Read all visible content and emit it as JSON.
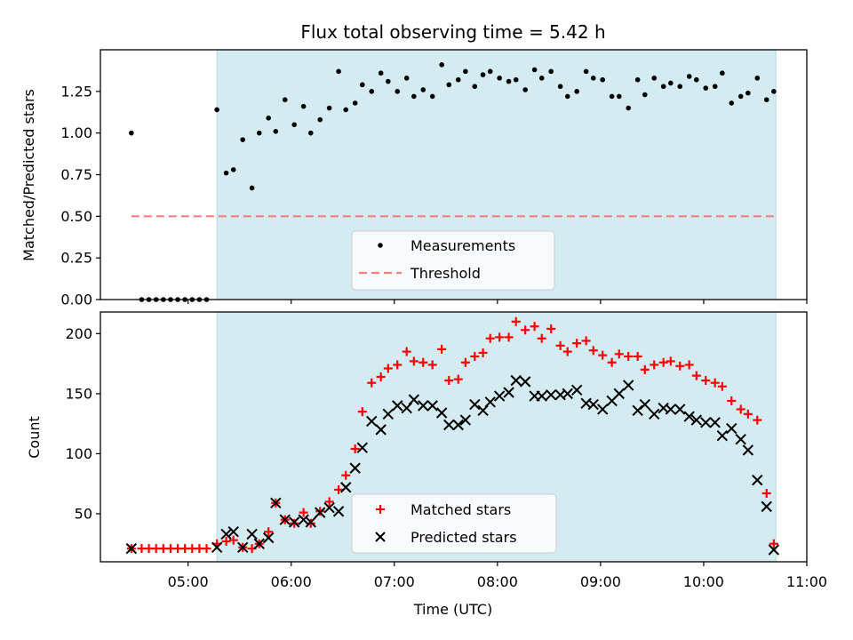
{
  "chart_data": [
    {
      "type": "scatter",
      "title": "Flux total observing time = 5.42 h",
      "xlabel": "",
      "ylabel": "Matched/Predicted stars",
      "xlim": [
        4.15,
        11.0
      ],
      "ylim": [
        0.0,
        1.5
      ],
      "yticks": [
        0.0,
        0.25,
        0.5,
        0.75,
        1.0,
        1.25
      ],
      "ytick_labels": [
        "0.00",
        "0.25",
        "0.50",
        "0.75",
        "1.00",
        "1.25"
      ],
      "shaded_span": [
        5.28,
        10.7
      ],
      "shaded_color": "#d4ebf1",
      "legend": {
        "placement": "lower-center",
        "entries": [
          "Measurements",
          "Threshold"
        ]
      },
      "series": [
        {
          "name": "Measurements",
          "color": "#000000",
          "marker": "dot",
          "x": [
            4.45,
            4.55,
            4.62,
            4.69,
            4.76,
            4.83,
            4.9,
            4.97,
            5.04,
            5.11,
            5.18,
            5.28,
            5.37,
            5.44,
            5.53,
            5.62,
            5.69,
            5.78,
            5.85,
            5.94,
            6.03,
            6.12,
            6.19,
            6.28,
            6.37,
            6.46,
            6.53,
            6.62,
            6.69,
            6.78,
            6.87,
            6.94,
            7.03,
            7.12,
            7.19,
            7.28,
            7.37,
            7.46,
            7.53,
            7.62,
            7.69,
            7.78,
            7.86,
            7.93,
            8.02,
            8.11,
            8.18,
            8.27,
            8.36,
            8.43,
            8.52,
            8.61,
            8.68,
            8.77,
            8.86,
            8.93,
            9.02,
            9.11,
            9.18,
            9.27,
            9.36,
            9.43,
            9.52,
            9.61,
            9.68,
            9.77,
            9.86,
            9.93,
            10.02,
            10.11,
            10.18,
            10.27,
            10.36,
            10.43,
            10.52,
            10.61,
            10.68
          ],
          "y": [
            1.0,
            0.0,
            0.0,
            0.0,
            0.0,
            0.0,
            0.0,
            0.0,
            0.0,
            0.0,
            0.0,
            1.14,
            0.76,
            0.78,
            0.96,
            0.67,
            1.0,
            1.09,
            1.01,
            1.2,
            1.05,
            1.16,
            1.0,
            1.08,
            1.15,
            1.37,
            1.14,
            1.18,
            1.29,
            1.25,
            1.36,
            1.31,
            1.25,
            1.33,
            1.22,
            1.26,
            1.22,
            1.41,
            1.29,
            1.32,
            1.37,
            1.28,
            1.35,
            1.37,
            1.33,
            1.31,
            1.32,
            1.26,
            1.38,
            1.33,
            1.37,
            1.28,
            1.22,
            1.25,
            1.37,
            1.33,
            1.32,
            1.22,
            1.22,
            1.15,
            1.32,
            1.23,
            1.33,
            1.28,
            1.3,
            1.28,
            1.34,
            1.32,
            1.27,
            1.28,
            1.36,
            1.18,
            1.22,
            1.24,
            1.33,
            1.2,
            1.25
          ]
        },
        {
          "name": "Threshold",
          "color": "#f08080",
          "style": "dashed",
          "x": [
            4.45,
            10.7
          ],
          "y": [
            0.5,
            0.5
          ]
        }
      ]
    },
    {
      "type": "scatter",
      "title": "",
      "xlabel": "Time (UTC)",
      "ylabel": "Count",
      "xlim": [
        4.15,
        11.0
      ],
      "ylim": [
        10,
        218
      ],
      "yticks": [
        50,
        100,
        150,
        200
      ],
      "ytick_labels": [
        "50",
        "100",
        "150",
        "200"
      ],
      "xticks": [
        5,
        6,
        7,
        8,
        9,
        10,
        11
      ],
      "xtick_labels": [
        "05:00",
        "06:00",
        "07:00",
        "08:00",
        "09:00",
        "10:00",
        "11:00"
      ],
      "shaded_span": [
        5.28,
        10.7
      ],
      "shaded_color": "#d4ebf1",
      "legend": {
        "placement": "lower-center",
        "entries": [
          "Matched stars",
          "Predicted stars"
        ]
      },
      "series": [
        {
          "name": "Matched stars",
          "color": "#ff0000",
          "marker": "plus",
          "x": [
            4.45,
            4.55,
            4.62,
            4.69,
            4.76,
            4.83,
            4.9,
            4.97,
            5.04,
            5.11,
            5.18,
            5.28,
            5.37,
            5.44,
            5.53,
            5.62,
            5.69,
            5.78,
            5.85,
            5.94,
            6.03,
            6.12,
            6.19,
            6.28,
            6.37,
            6.46,
            6.53,
            6.62,
            6.69,
            6.78,
            6.87,
            6.94,
            7.03,
            7.12,
            7.19,
            7.28,
            7.37,
            7.46,
            7.53,
            7.62,
            7.69,
            7.78,
            7.86,
            7.93,
            8.02,
            8.11,
            8.18,
            8.27,
            8.36,
            8.43,
            8.52,
            8.61,
            8.68,
            8.77,
            8.86,
            8.93,
            9.02,
            9.11,
            9.18,
            9.27,
            9.36,
            9.43,
            9.52,
            9.61,
            9.68,
            9.77,
            9.86,
            9.93,
            10.02,
            10.11,
            10.18,
            10.27,
            10.36,
            10.43,
            10.52,
            10.61,
            10.68
          ],
          "y": [
            21,
            21,
            21,
            21,
            21,
            21,
            21,
            21,
            21,
            21,
            21,
            25,
            27,
            28,
            22,
            21,
            25,
            35,
            59,
            45,
            42,
            51,
            42,
            52,
            60,
            70,
            82,
            104,
            135,
            159,
            164,
            171,
            174,
            185,
            177,
            176,
            174,
            187,
            161,
            162,
            176,
            181,
            184,
            196,
            197,
            197,
            210,
            203,
            206,
            196,
            204,
            190,
            185,
            192,
            194,
            186,
            182,
            176,
            183,
            181,
            181,
            170,
            174,
            176,
            177,
            173,
            174,
            165,
            161,
            159,
            156,
            144,
            137,
            133,
            128,
            67,
            25
          ]
        },
        {
          "name": "Predicted stars",
          "color": "#000000",
          "marker": "x",
          "x": [
            4.45,
            5.28,
            5.37,
            5.44,
            5.53,
            5.62,
            5.69,
            5.78,
            5.85,
            5.94,
            6.03,
            6.12,
            6.19,
            6.28,
            6.37,
            6.46,
            6.53,
            6.62,
            6.69,
            6.78,
            6.87,
            6.94,
            7.03,
            7.12,
            7.19,
            7.28,
            7.37,
            7.46,
            7.53,
            7.62,
            7.69,
            7.78,
            7.86,
            7.93,
            8.02,
            8.11,
            8.18,
            8.27,
            8.36,
            8.43,
            8.52,
            8.61,
            8.68,
            8.77,
            8.86,
            8.93,
            9.02,
            9.11,
            9.18,
            9.27,
            9.36,
            9.43,
            9.52,
            9.61,
            9.68,
            9.77,
            9.86,
            9.93,
            10.02,
            10.11,
            10.18,
            10.27,
            10.36,
            10.43,
            10.52,
            10.61,
            10.68
          ],
          "y": [
            21,
            22,
            33,
            35,
            22,
            33,
            25,
            30,
            59,
            45,
            43,
            45,
            43,
            51,
            55,
            52,
            72,
            88,
            105,
            127,
            120,
            133,
            140,
            138,
            145,
            140,
            140,
            134,
            124,
            124,
            128,
            141,
            136,
            143,
            148,
            151,
            161,
            160,
            148,
            148,
            149,
            149,
            150,
            153,
            142,
            141,
            137,
            144,
            150,
            157,
            136,
            141,
            133,
            138,
            137,
            137,
            131,
            128,
            126,
            126,
            115,
            121,
            112,
            103,
            78,
            56,
            20
          ]
        }
      ]
    }
  ]
}
